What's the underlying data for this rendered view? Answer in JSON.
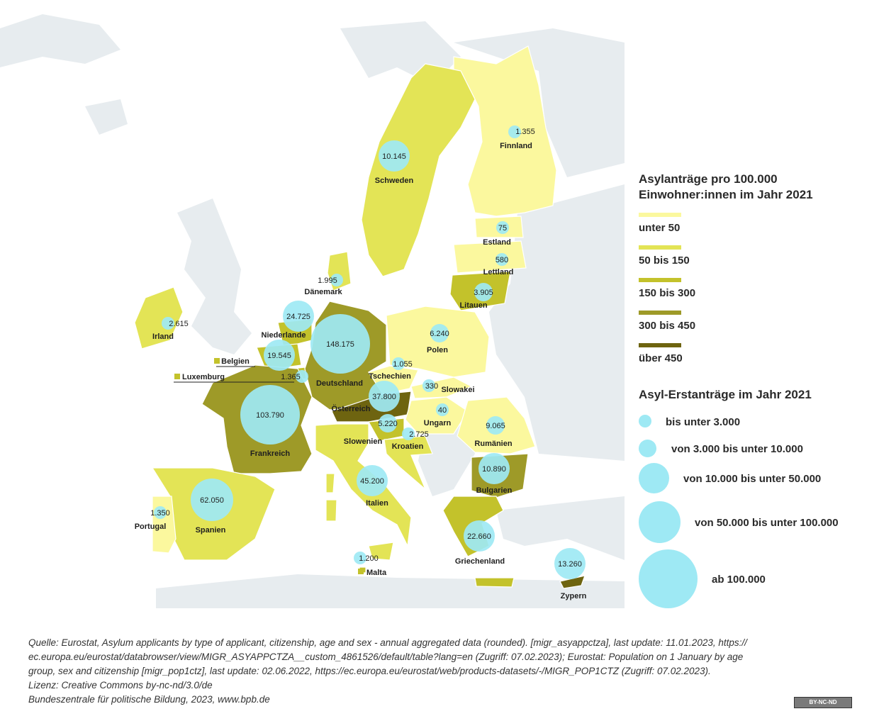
{
  "colors": {
    "sea": "#ffffff",
    "non_eu_land": "#e7ecef",
    "class_1": "#fbf89e",
    "class_2": "#e3e456",
    "class_3": "#c3c22b",
    "class_4": "#9e9a28",
    "class_5": "#6e6410",
    "bubble": "#9ee9f4"
  },
  "legend": {
    "choropleth_title_line1": "Asylanträge pro 100.000",
    "choropleth_title_line2": "Einwohner:innen im Jahr 2021",
    "classes": [
      {
        "label": "unter 50",
        "color_key": "class_1"
      },
      {
        "label": "50 bis 150",
        "color_key": "class_2"
      },
      {
        "label": "150 bis 300",
        "color_key": "class_3"
      },
      {
        "label": "300 bis 450",
        "color_key": "class_4"
      },
      {
        "label": "über 450",
        "color_key": "class_5"
      }
    ],
    "bubble_title": "Asyl-Erstanträge im Jahr 2021",
    "bubbles": [
      {
        "label": "bis unter 3.000"
      },
      {
        "label": "von 3.000 bis unter 10.000"
      },
      {
        "label": "von 10.000 bis unter 50.000"
      },
      {
        "label": "von 50.000 bis unter 100.000"
      },
      {
        "label": "ab 100.000"
      }
    ]
  },
  "countries": [
    {
      "name": "Finnland",
      "value": "1.355",
      "class": 1,
      "size": 1
    },
    {
      "name": "Schweden",
      "value": "10.145",
      "class": 2,
      "size": 3
    },
    {
      "name": "Estland",
      "value": "75",
      "class": 1,
      "size": 1
    },
    {
      "name": "Lettland",
      "value": "580",
      "class": 1,
      "size": 1
    },
    {
      "name": "Litauen",
      "value": "3.905",
      "class": 3,
      "size": 2
    },
    {
      "name": "Dänemark",
      "value": "1.995",
      "class": 2,
      "size": 1
    },
    {
      "name": "Irland",
      "value": "2.615",
      "class": 2,
      "size": 1
    },
    {
      "name": "Niederlande",
      "value": "24.725",
      "class": 3,
      "size": 3
    },
    {
      "name": "Belgien",
      "value": "19.545",
      "class": 3,
      "size": 3
    },
    {
      "name": "Luxemburg",
      "value": "1.365",
      "class": 3,
      "size": 1
    },
    {
      "name": "Deutschland",
      "value": "148.175",
      "class": 4,
      "size": 5
    },
    {
      "name": "Polen",
      "value": "6.240",
      "class": 1,
      "size": 2
    },
    {
      "name": "Tschechien",
      "value": "1.055",
      "class": 1,
      "size": 1
    },
    {
      "name": "Slowakei",
      "value": "330",
      "class": 1,
      "size": 1
    },
    {
      "name": "Österreich",
      "value": "37.800",
      "class": 5,
      "size": 3
    },
    {
      "name": "Ungarn",
      "value": "40",
      "class": 1,
      "size": 1
    },
    {
      "name": "Frankreich",
      "value": "103.790",
      "class": 4,
      "size": 5
    },
    {
      "name": "Slowenien",
      "value": "5.220",
      "class": 3,
      "size": 2
    },
    {
      "name": "Kroatien",
      "value": "2.725",
      "class": 2,
      "size": 1
    },
    {
      "name": "Rumänien",
      "value": "9.065",
      "class": 2,
      "size": 2
    },
    {
      "name": "Bulgarien",
      "value": "10.890",
      "class": 4,
      "size": 3
    },
    {
      "name": "Italien",
      "value": "45.200",
      "class": 2,
      "size": 3
    },
    {
      "name": "Spanien",
      "value": "62.050",
      "class": 2,
      "size": 4
    },
    {
      "name": "Portugal",
      "value": "1.350",
      "class": 1,
      "size": 1
    },
    {
      "name": "Malta",
      "value": "1.200",
      "class": 3,
      "size": 1
    },
    {
      "name": "Griechenland",
      "value": "22.660",
      "class": 3,
      "size": 3
    },
    {
      "name": "Zypern",
      "value": "13.260",
      "class": 5,
      "size": 3
    }
  ],
  "source": {
    "line1": "Quelle: Eurostat, Asylum applicants by type of applicant, citizenship, age and sex - annual aggregated data (rounded). [migr_asyappctza], last update: 11.01.2023, https://",
    "line2": "ec.europa.eu/eurostat/databrowser/view/MIGR_ASYAPPCTZA__custom_4861526/default/table?lang=en (Zugriff: 07.02.2023); Eurostat: Population on 1 January by age",
    "line3": "group, sex and citizenship [migr_pop1ctz], last update: 02.06.2022, https://ec.europa.eu/eurostat/web/products-datasets/-/MIGR_POP1CTZ (Zugriff: 07.02.2023).",
    "line4": "Lizenz: Creative Commons by-nc-nd/3.0/de",
    "line5": "Bundeszentrale für politische Bildung, 2023, www.bpb.de"
  },
  "license_badge": "BY-NC-ND"
}
